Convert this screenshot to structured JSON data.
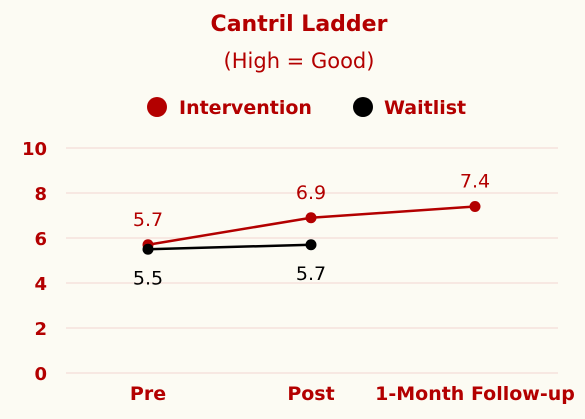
{
  "chart_data": {
    "type": "line",
    "title": "Cantril Ladder",
    "subtitle": "(High = Good)",
    "categories": [
      "Pre",
      "Post",
      "1-Month Follow-up"
    ],
    "series": [
      {
        "name": "Intervention",
        "color": "#b30000",
        "values": [
          5.7,
          6.9,
          7.4
        ],
        "labels": [
          "5.7",
          "6.9",
          "7.4"
        ],
        "label_position": "above"
      },
      {
        "name": "Waitlist",
        "color": "#000000",
        "values": [
          5.5,
          5.7,
          null
        ],
        "labels": [
          "5.5",
          "5.7",
          null
        ],
        "label_position": "below"
      }
    ],
    "ylim": [
      0,
      10
    ],
    "yticks": [
      0,
      2,
      4,
      6,
      8,
      10
    ],
    "ytick_labels": [
      "0",
      "2",
      "4",
      "6",
      "8",
      "10"
    ],
    "xlabel": "",
    "ylabel": "",
    "grid": true,
    "legend_position": "top-center",
    "colors": {
      "text_accent": "#b30000",
      "grid": "#f2d6d0",
      "background": "#fcfbf3"
    }
  }
}
